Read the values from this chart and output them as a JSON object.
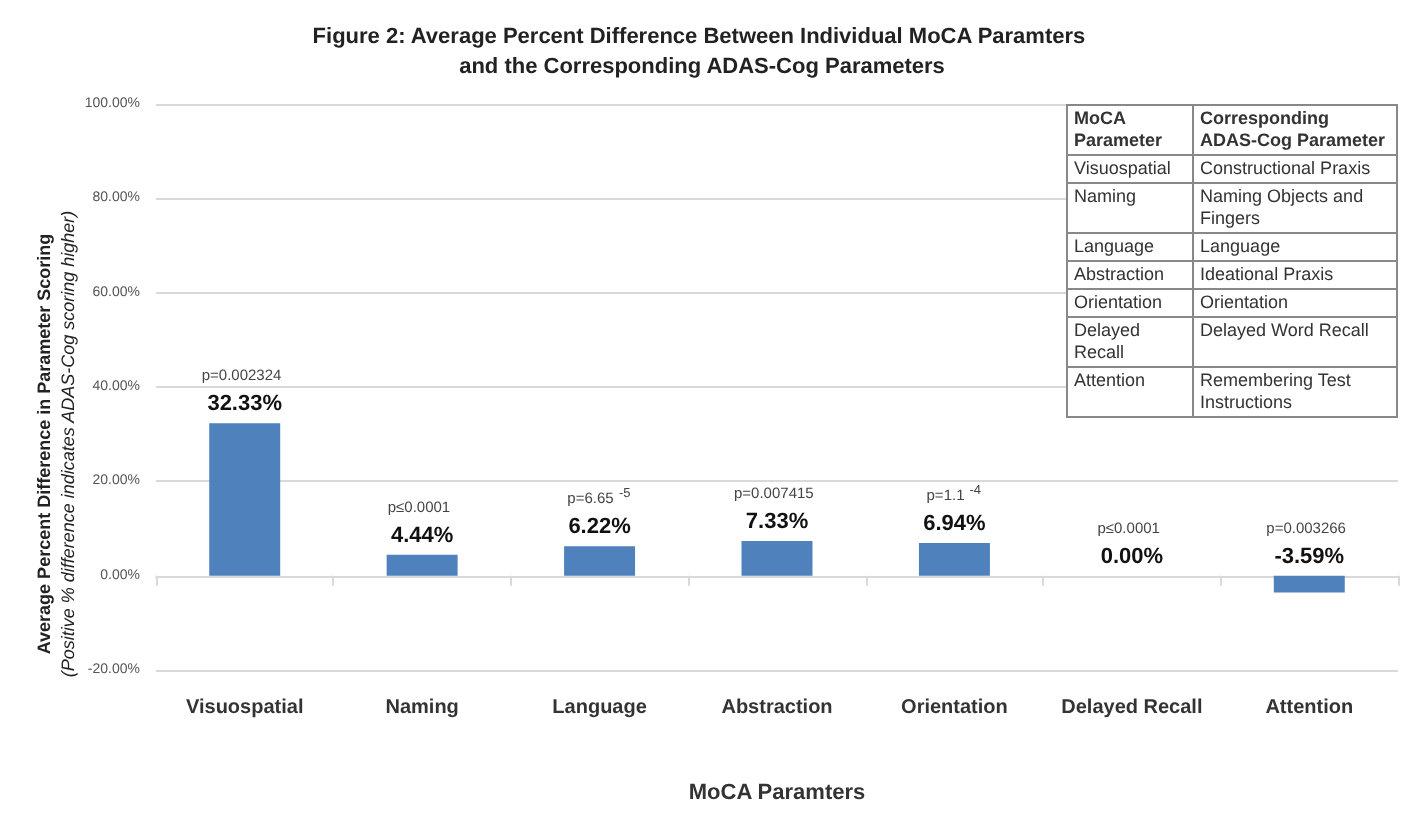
{
  "chart_data": [
    {
      "type": "bar",
      "title": "Figure 2: Average Percent Difference Between Individual MoCA Paramters and the Corresponding ADAS-Cog Parameters",
      "xlabel": "MoCA Paramters",
      "ylabel": "Average Percent Difference in Parameter Scoring",
      "subtitle": "(Positive % difference indicates ADAS-Cog scoring higher)",
      "categories": [
        "Visuospatial",
        "Naming",
        "Language",
        "Abstraction",
        "Orientation",
        "Delayed Recall",
        "Attention"
      ],
      "values": [
        32.33,
        4.44,
        6.22,
        7.33,
        6.94,
        0.0,
        -3.59
      ],
      "value_labels": [
        "32.33%",
        "4.44%",
        "6.22%",
        "7.33%",
        "6.94%",
        "0.00%",
        "-3.59%"
      ],
      "color": "#4f81bd",
      "ylim": [
        -20,
        100
      ],
      "yticks": [
        {
          "value": -20,
          "label": "-20.00%"
        },
        {
          "value": 0,
          "label": "0.00%"
        },
        {
          "value": 20,
          "label": "20.00%"
        },
        {
          "value": 40,
          "label": "40.00%"
        },
        {
          "value": 60,
          "label": "60.00%"
        },
        {
          "value": 80,
          "label": "80.00%"
        },
        {
          "value": 100,
          "label": "100.00%"
        }
      ],
      "grid": "y",
      "annotations": [
        "p=0.002324",
        "p≤0.0001",
        "p=6.65$^{-5}$",
        "p=0.007415",
        "p=1.1$^{-4}$",
        "p≤0.0001",
        "p=0.003266"
      ]
    },
    {
      "type": "other",
      "annotations": [
        "MoCA Parameter",
        "Corresponding ADAS-Cog Parameter",
        "Visuospatial",
        "Constructional Praxis",
        "Naming",
        "Naming Objects and Fingers",
        "Language",
        "Language",
        "Abstraction",
        "Ideational Praxis",
        "Orientation",
        "Orientation",
        "Delayed Recall",
        "Delayed Word Recall",
        "Attention",
        "Remembering Test Instructions"
      ]
    }
  ]
}
